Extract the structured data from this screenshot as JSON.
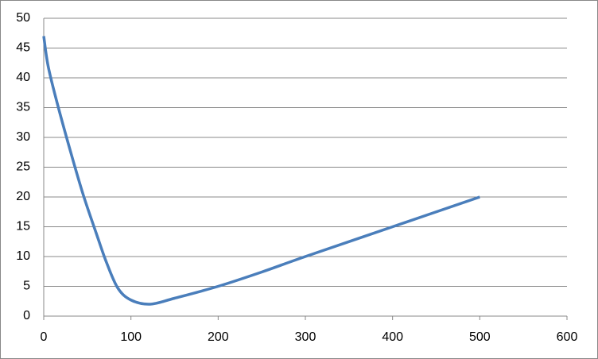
{
  "chart_data": {
    "type": "line",
    "series": [
      {
        "color": "#4a7ebb",
        "x": [
          0,
          5,
          15,
          30,
          45,
          60,
          72,
          85,
          100,
          122,
          150,
          200,
          250,
          300,
          400,
          500
        ],
        "values": [
          47,
          42,
          36,
          28,
          20.5,
          14,
          9,
          4.7,
          2.7,
          2,
          3,
          5,
          7.4,
          10,
          15,
          20
        ]
      }
    ],
    "xlim": [
      0,
      600
    ],
    "xticks": [
      0,
      100,
      200,
      300,
      400,
      500,
      600
    ],
    "ylim": [
      0,
      50
    ],
    "yticks": [
      0,
      5,
      10,
      15,
      20,
      25,
      30,
      35,
      40,
      45,
      50
    ],
    "grid": true
  }
}
